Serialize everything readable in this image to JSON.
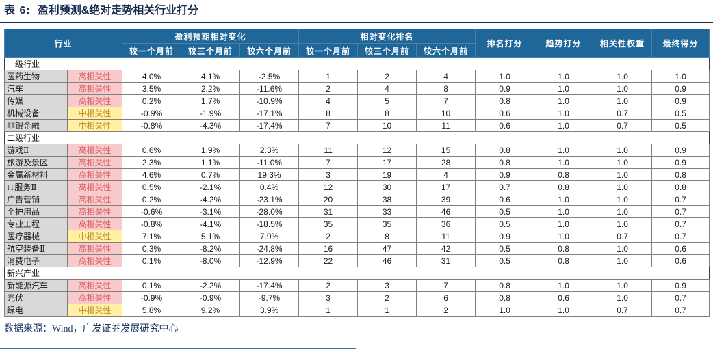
{
  "title": {
    "label": "表 6:",
    "text": "盈利预测&绝对走势相关行业打分"
  },
  "colors": {
    "title_navy": "#152A4E",
    "header_blue": "#1F6699",
    "industry_cell_grey": "#D9D9D9",
    "high_correlation_bg": "#F8CACB",
    "high_correlation_text": "#D96066",
    "mid_correlation_bg": "#FFF0A3",
    "mid_correlation_text": "#BE8A28",
    "bottom_rule_blue": "#2E74B5"
  },
  "table": {
    "header": {
      "industry": "行业",
      "group_pct": "盈利预期相对变化",
      "group_rank": "相对变化排名",
      "sub": [
        "较一个月前",
        "较三个月前",
        "较六个月前"
      ],
      "rank_score": "排名打分",
      "trend_score": "趋势打分",
      "corr_weight": "相关性权重",
      "final_score": "最终得分"
    },
    "sections": [
      {
        "label": "一级行业",
        "rows": [
          {
            "name": "医药生物",
            "corr": "高相关性",
            "level": "high",
            "values": [
              "4.0%",
              "4.1%",
              "-2.5%",
              "1",
              "2",
              "4",
              "1.0",
              "1.0",
              "1.0",
              "1.0"
            ]
          },
          {
            "name": "汽车",
            "corr": "高相关性",
            "level": "high",
            "values": [
              "3.5%",
              "2.2%",
              "-11.6%",
              "2",
              "4",
              "8",
              "0.9",
              "1.0",
              "1.0",
              "0.9"
            ]
          },
          {
            "name": "传媒",
            "corr": "高相关性",
            "level": "high",
            "values": [
              "0.2%",
              "1.7%",
              "-10.9%",
              "4",
              "5",
              "7",
              "0.8",
              "1.0",
              "1.0",
              "0.9"
            ]
          },
          {
            "name": "机械设备",
            "corr": "中相关性",
            "level": "mid",
            "values": [
              "-0.9%",
              "-1.9%",
              "-17.1%",
              "8",
              "8",
              "10",
              "0.6",
              "1.0",
              "0.7",
              "0.5"
            ]
          },
          {
            "name": "非银金融",
            "corr": "中相关性",
            "level": "mid",
            "values": [
              "-0.8%",
              "-4.3%",
              "-17.4%",
              "7",
              "10",
              "11",
              "0.6",
              "1.0",
              "0.7",
              "0.5"
            ]
          }
        ]
      },
      {
        "label": "二级行业",
        "rows": [
          {
            "name": "游戏Ⅱ",
            "corr": "高相关性",
            "level": "high",
            "values": [
              "0.6%",
              "1.9%",
              "2.3%",
              "11",
              "12",
              "15",
              "0.8",
              "1.0",
              "1.0",
              "0.9"
            ]
          },
          {
            "name": "旅游及景区",
            "corr": "高相关性",
            "level": "high",
            "values": [
              "2.3%",
              "1.1%",
              "-11.0%",
              "7",
              "17",
              "28",
              "0.8",
              "1.0",
              "1.0",
              "0.9"
            ]
          },
          {
            "name": "金属新材料",
            "corr": "高相关性",
            "level": "high",
            "values": [
              "4.6%",
              "0.7%",
              "19.3%",
              "3",
              "19",
              "4",
              "0.9",
              "0.8",
              "1.0",
              "0.8"
            ]
          },
          {
            "name": "IT服务Ⅱ",
            "corr": "高相关性",
            "level": "high",
            "values": [
              "0.5%",
              "-2.1%",
              "0.4%",
              "12",
              "30",
              "17",
              "0.7",
              "0.8",
              "1.0",
              "0.8"
            ]
          },
          {
            "name": "广告营销",
            "corr": "高相关性",
            "level": "high",
            "values": [
              "0.2%",
              "-4.2%",
              "-23.1%",
              "20",
              "38",
              "39",
              "0.6",
              "1.0",
              "1.0",
              "0.7"
            ]
          },
          {
            "name": "个护用品",
            "corr": "高相关性",
            "level": "high",
            "values": [
              "-0.6%",
              "-3.1%",
              "-28.0%",
              "31",
              "33",
              "46",
              "0.5",
              "1.0",
              "1.0",
              "0.7"
            ]
          },
          {
            "name": "专业工程",
            "corr": "高相关性",
            "level": "high",
            "values": [
              "-0.8%",
              "-4.1%",
              "-18.5%",
              "35",
              "35",
              "36",
              "0.5",
              "1.0",
              "1.0",
              "0.7"
            ]
          },
          {
            "name": "医疗器械",
            "corr": "中相关性",
            "level": "mid",
            "values": [
              "7.1%",
              "5.1%",
              "7.9%",
              "2",
              "8",
              "11",
              "0.9",
              "1.0",
              "0.7",
              "0.7"
            ]
          },
          {
            "name": "航空装备Ⅱ",
            "corr": "高相关性",
            "level": "high",
            "values": [
              "0.3%",
              "-8.2%",
              "-24.8%",
              "16",
              "47",
              "42",
              "0.5",
              "0.8",
              "1.0",
              "0.6"
            ]
          },
          {
            "name": "消费电子",
            "corr": "高相关性",
            "level": "high",
            "values": [
              "0.1%",
              "-8.0%",
              "-12.9%",
              "22",
              "46",
              "31",
              "0.5",
              "0.8",
              "1.0",
              "0.6"
            ]
          }
        ]
      },
      {
        "label": "新兴产业",
        "rows": [
          {
            "name": "新能源汽车",
            "corr": "高相关性",
            "level": "high",
            "values": [
              "0.1%",
              "-2.2%",
              "-17.4%",
              "2",
              "3",
              "7",
              "0.8",
              "1.0",
              "1.0",
              "0.9"
            ]
          },
          {
            "name": "光伏",
            "corr": "高相关性",
            "level": "high",
            "values": [
              "-0.9%",
              "-0.9%",
              "-9.7%",
              "3",
              "2",
              "6",
              "0.8",
              "0.6",
              "1.0",
              "0.7"
            ]
          },
          {
            "name": "绿电",
            "corr": "中相关性",
            "level": "mid",
            "values": [
              "5.8%",
              "9.2%",
              "3.9%",
              "1",
              "1",
              "2",
              "1.0",
              "1.0",
              "0.7",
              "0.7"
            ]
          }
        ]
      }
    ]
  },
  "footer": {
    "source": "数据来源：Wind，广发证券发展研究中心"
  }
}
